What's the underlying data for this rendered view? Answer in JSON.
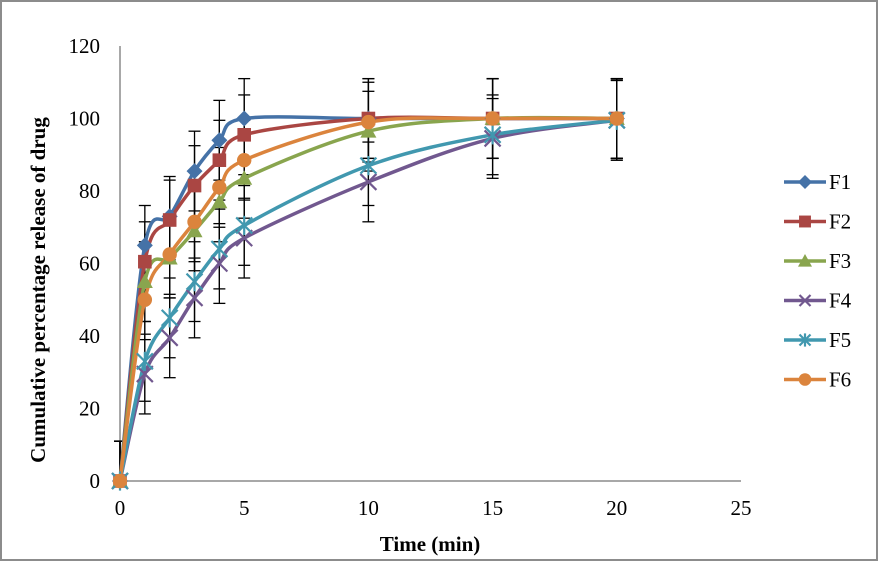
{
  "chart_data": {
    "type": "line",
    "title": "",
    "xlabel": "Time (min)",
    "ylabel": "Cumulative percentage release of drug",
    "xlim": [
      0,
      25
    ],
    "ylim": [
      0,
      120
    ],
    "xticks": [
      0,
      5,
      10,
      15,
      20,
      25
    ],
    "yticks": [
      0,
      20,
      40,
      60,
      80,
      100,
      120
    ],
    "grid": false,
    "legend_position": "right",
    "x": [
      0,
      1,
      2,
      3,
      4,
      5,
      10,
      15,
      20
    ],
    "error_bar": 11,
    "series": [
      {
        "name": "F1",
        "color": "#4572a7",
        "marker": "diamond",
        "values": [
          0,
          65,
          73,
          85.5,
          94,
          100,
          100,
          100,
          100
        ]
      },
      {
        "name": "F2",
        "color": "#aa4643",
        "marker": "square",
        "values": [
          0,
          60.5,
          72,
          81.5,
          88.5,
          95.5,
          100,
          100,
          100
        ]
      },
      {
        "name": "F3",
        "color": "#89a54e",
        "marker": "triangle",
        "values": [
          0,
          55,
          61.5,
          69,
          77,
          83.5,
          96.5,
          100,
          100
        ]
      },
      {
        "name": "F4",
        "color": "#71588f",
        "marker": "x",
        "values": [
          0,
          29.5,
          39.5,
          50.5,
          60,
          67,
          82.5,
          94.5,
          99.5
        ]
      },
      {
        "name": "F5",
        "color": "#4198af",
        "marker": "star",
        "values": [
          0,
          33,
          45,
          55,
          64,
          70.5,
          87,
          95.5,
          99.5
        ]
      },
      {
        "name": "F6",
        "color": "#db843d",
        "marker": "circle",
        "values": [
          0,
          50,
          62.5,
          71.5,
          81,
          88.5,
          99,
          100,
          100
        ]
      }
    ]
  }
}
